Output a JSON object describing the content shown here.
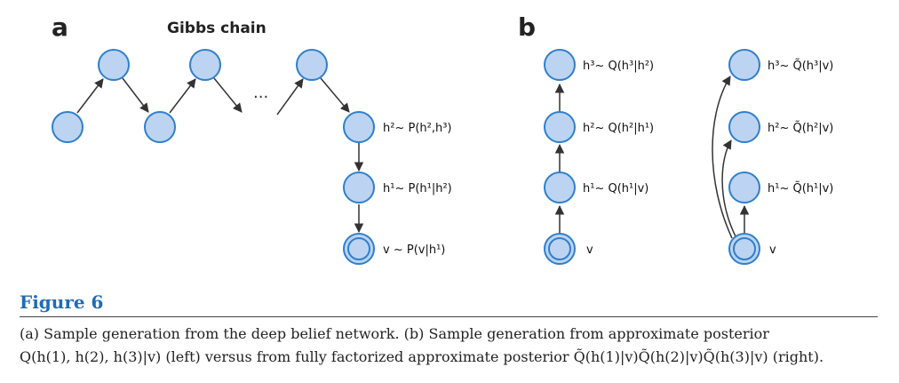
{
  "panels": {
    "a": {
      "letter": "a",
      "chain_title": "Gibbs chain",
      "ellipsis": "...",
      "labels": {
        "h2": "h²~ P(h²,h³)",
        "h1": "h¹~ P(h¹|h²)",
        "v": "v ~ P(v|h¹)"
      }
    },
    "b": {
      "letter": "b",
      "left_labels": {
        "h3": "h³~ Q(h³|h²)",
        "h2": "h²~ Q(h²|h¹)",
        "h1": "h¹~ Q(h¹|v)",
        "v": "v"
      },
      "right_labels": {
        "h3": "h³~ Q̃(h³|v)",
        "h2": "h²~ Q̃(h²|v)",
        "h1": "h¹~ Q̃(h¹|v)",
        "v": "v"
      }
    }
  },
  "figure": {
    "title": "Figure 6",
    "caption_line1": "(a) Sample generation from the deep belief network. (b) Sample generation from approximate posterior",
    "caption_line2": "Q(h(1), h(2), h(3)|v) (left) versus from fully factorized approximate posterior Q̃(h(1)|v)Q̃(h(2)|v)Q̃(h(3)|v) (right)."
  },
  "colors": {
    "node_fill": "#bcd4f2",
    "node_stroke": "#2f7fcc",
    "title_color": "#1f6bb8"
  }
}
